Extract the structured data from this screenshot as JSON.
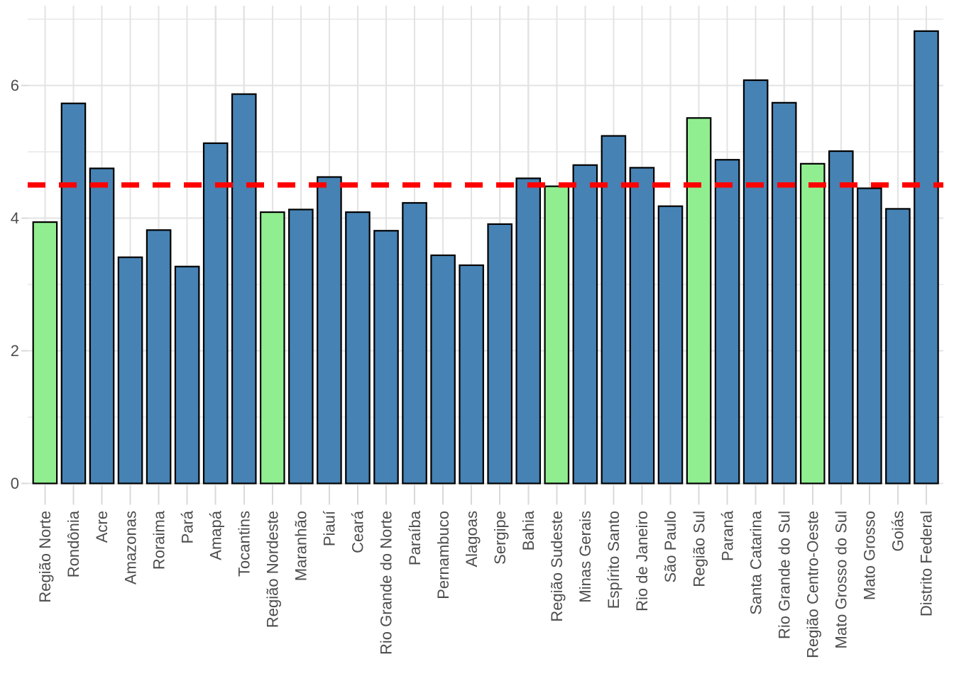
{
  "chart_data": {
    "type": "bar",
    "title": "",
    "xlabel": "",
    "ylabel": "",
    "legend_position": "none",
    "grid": true,
    "ylim": [
      0,
      7.2
    ],
    "yticks": [
      0,
      2,
      4,
      6
    ],
    "ytick_labels": [
      "0",
      "2",
      "4",
      "6"
    ],
    "yticks_minor": [
      1,
      3,
      5,
      7
    ],
    "bars": [
      {
        "label": "Região Norte",
        "value": 3.94,
        "type": "region"
      },
      {
        "label": "Rondônia",
        "value": 5.73,
        "type": "state"
      },
      {
        "label": "Acre",
        "value": 4.75,
        "type": "state"
      },
      {
        "label": "Amazonas",
        "value": 3.41,
        "type": "state"
      },
      {
        "label": "Roraima",
        "value": 3.82,
        "type": "state"
      },
      {
        "label": "Pará",
        "value": 3.27,
        "type": "state"
      },
      {
        "label": "Amapá",
        "value": 5.13,
        "type": "state"
      },
      {
        "label": "Tocantins",
        "value": 5.87,
        "type": "state"
      },
      {
        "label": "Região Nordeste",
        "value": 4.09,
        "type": "region"
      },
      {
        "label": "Maranhão",
        "value": 4.13,
        "type": "state"
      },
      {
        "label": "Piauí",
        "value": 4.62,
        "type": "state"
      },
      {
        "label": "Ceará",
        "value": 4.09,
        "type": "state"
      },
      {
        "label": "Rio Grande do Norte",
        "value": 3.81,
        "type": "state"
      },
      {
        "label": "Paraíba",
        "value": 4.23,
        "type": "state"
      },
      {
        "label": "Pernambuco",
        "value": 3.44,
        "type": "state"
      },
      {
        "label": "Alagoas",
        "value": 3.29,
        "type": "state"
      },
      {
        "label": "Sergipe",
        "value": 3.91,
        "type": "state"
      },
      {
        "label": "Bahia",
        "value": 4.6,
        "type": "state"
      },
      {
        "label": "Região Sudeste",
        "value": 4.48,
        "type": "region"
      },
      {
        "label": "Minas Gerais",
        "value": 4.8,
        "type": "state"
      },
      {
        "label": "Espírito Santo",
        "value": 5.24,
        "type": "state"
      },
      {
        "label": "Rio de Janeiro",
        "value": 4.76,
        "type": "state"
      },
      {
        "label": "São Paulo",
        "value": 4.18,
        "type": "state"
      },
      {
        "label": "Região Sul",
        "value": 5.51,
        "type": "region"
      },
      {
        "label": "Paraná",
        "value": 4.88,
        "type": "state"
      },
      {
        "label": "Santa Catarina",
        "value": 6.08,
        "type": "state"
      },
      {
        "label": "Rio Grande do Sul",
        "value": 5.74,
        "type": "state"
      },
      {
        "label": "Região Centro-Oeste",
        "value": 4.82,
        "type": "region"
      },
      {
        "label": "Mato Grosso do Sul",
        "value": 5.01,
        "type": "state"
      },
      {
        "label": "Mato Grosso",
        "value": 4.45,
        "type": "state"
      },
      {
        "label": "Goiás",
        "value": 4.14,
        "type": "state"
      },
      {
        "label": "Distrito Federal",
        "value": 6.82,
        "type": "state"
      }
    ],
    "reference_line": {
      "value": 4.5,
      "style": "dashed",
      "color": "#FF0000"
    },
    "colors": {
      "state_fill": "#4682B4",
      "region_fill": "#90EE90",
      "bar_outline": "#000000",
      "grid_major": "#E3E3E3",
      "grid_minor": "#EDEDED",
      "tick_mark": "#D9D9D9",
      "axis_text": "#4D4D4D",
      "background": "#FFFFFF"
    }
  }
}
